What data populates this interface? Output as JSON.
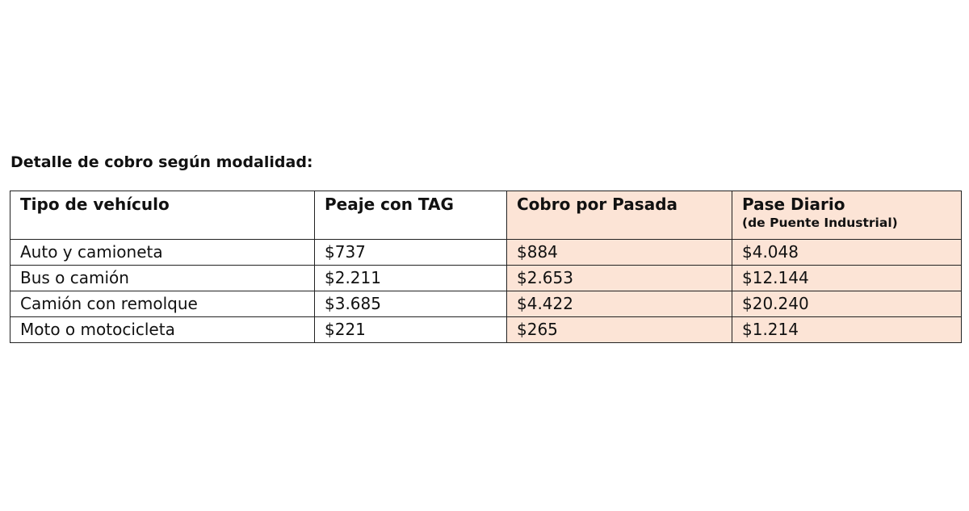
{
  "title": "Detalle de cobro según modalidad:",
  "table": {
    "headers": [
      "Tipo de vehículo",
      "Peaje con TAG",
      "Cobro por Pasada",
      "Pase Diario"
    ],
    "header_sub": "(de Puente Industrial)",
    "rows": [
      [
        "Auto y camioneta",
        "$737",
        "$884",
        "$4.048"
      ],
      [
        "Bus o camión",
        "$2.211",
        "$2.653",
        "$12.144"
      ],
      [
        "Camión con remolque",
        "$3.685",
        "$4.422",
        "$20.240"
      ],
      [
        "Moto o motocicleta",
        "$221",
        "$265",
        "$1.214"
      ]
    ]
  },
  "colors": {
    "highlight": "#fce4d6",
    "border": "#222222"
  }
}
